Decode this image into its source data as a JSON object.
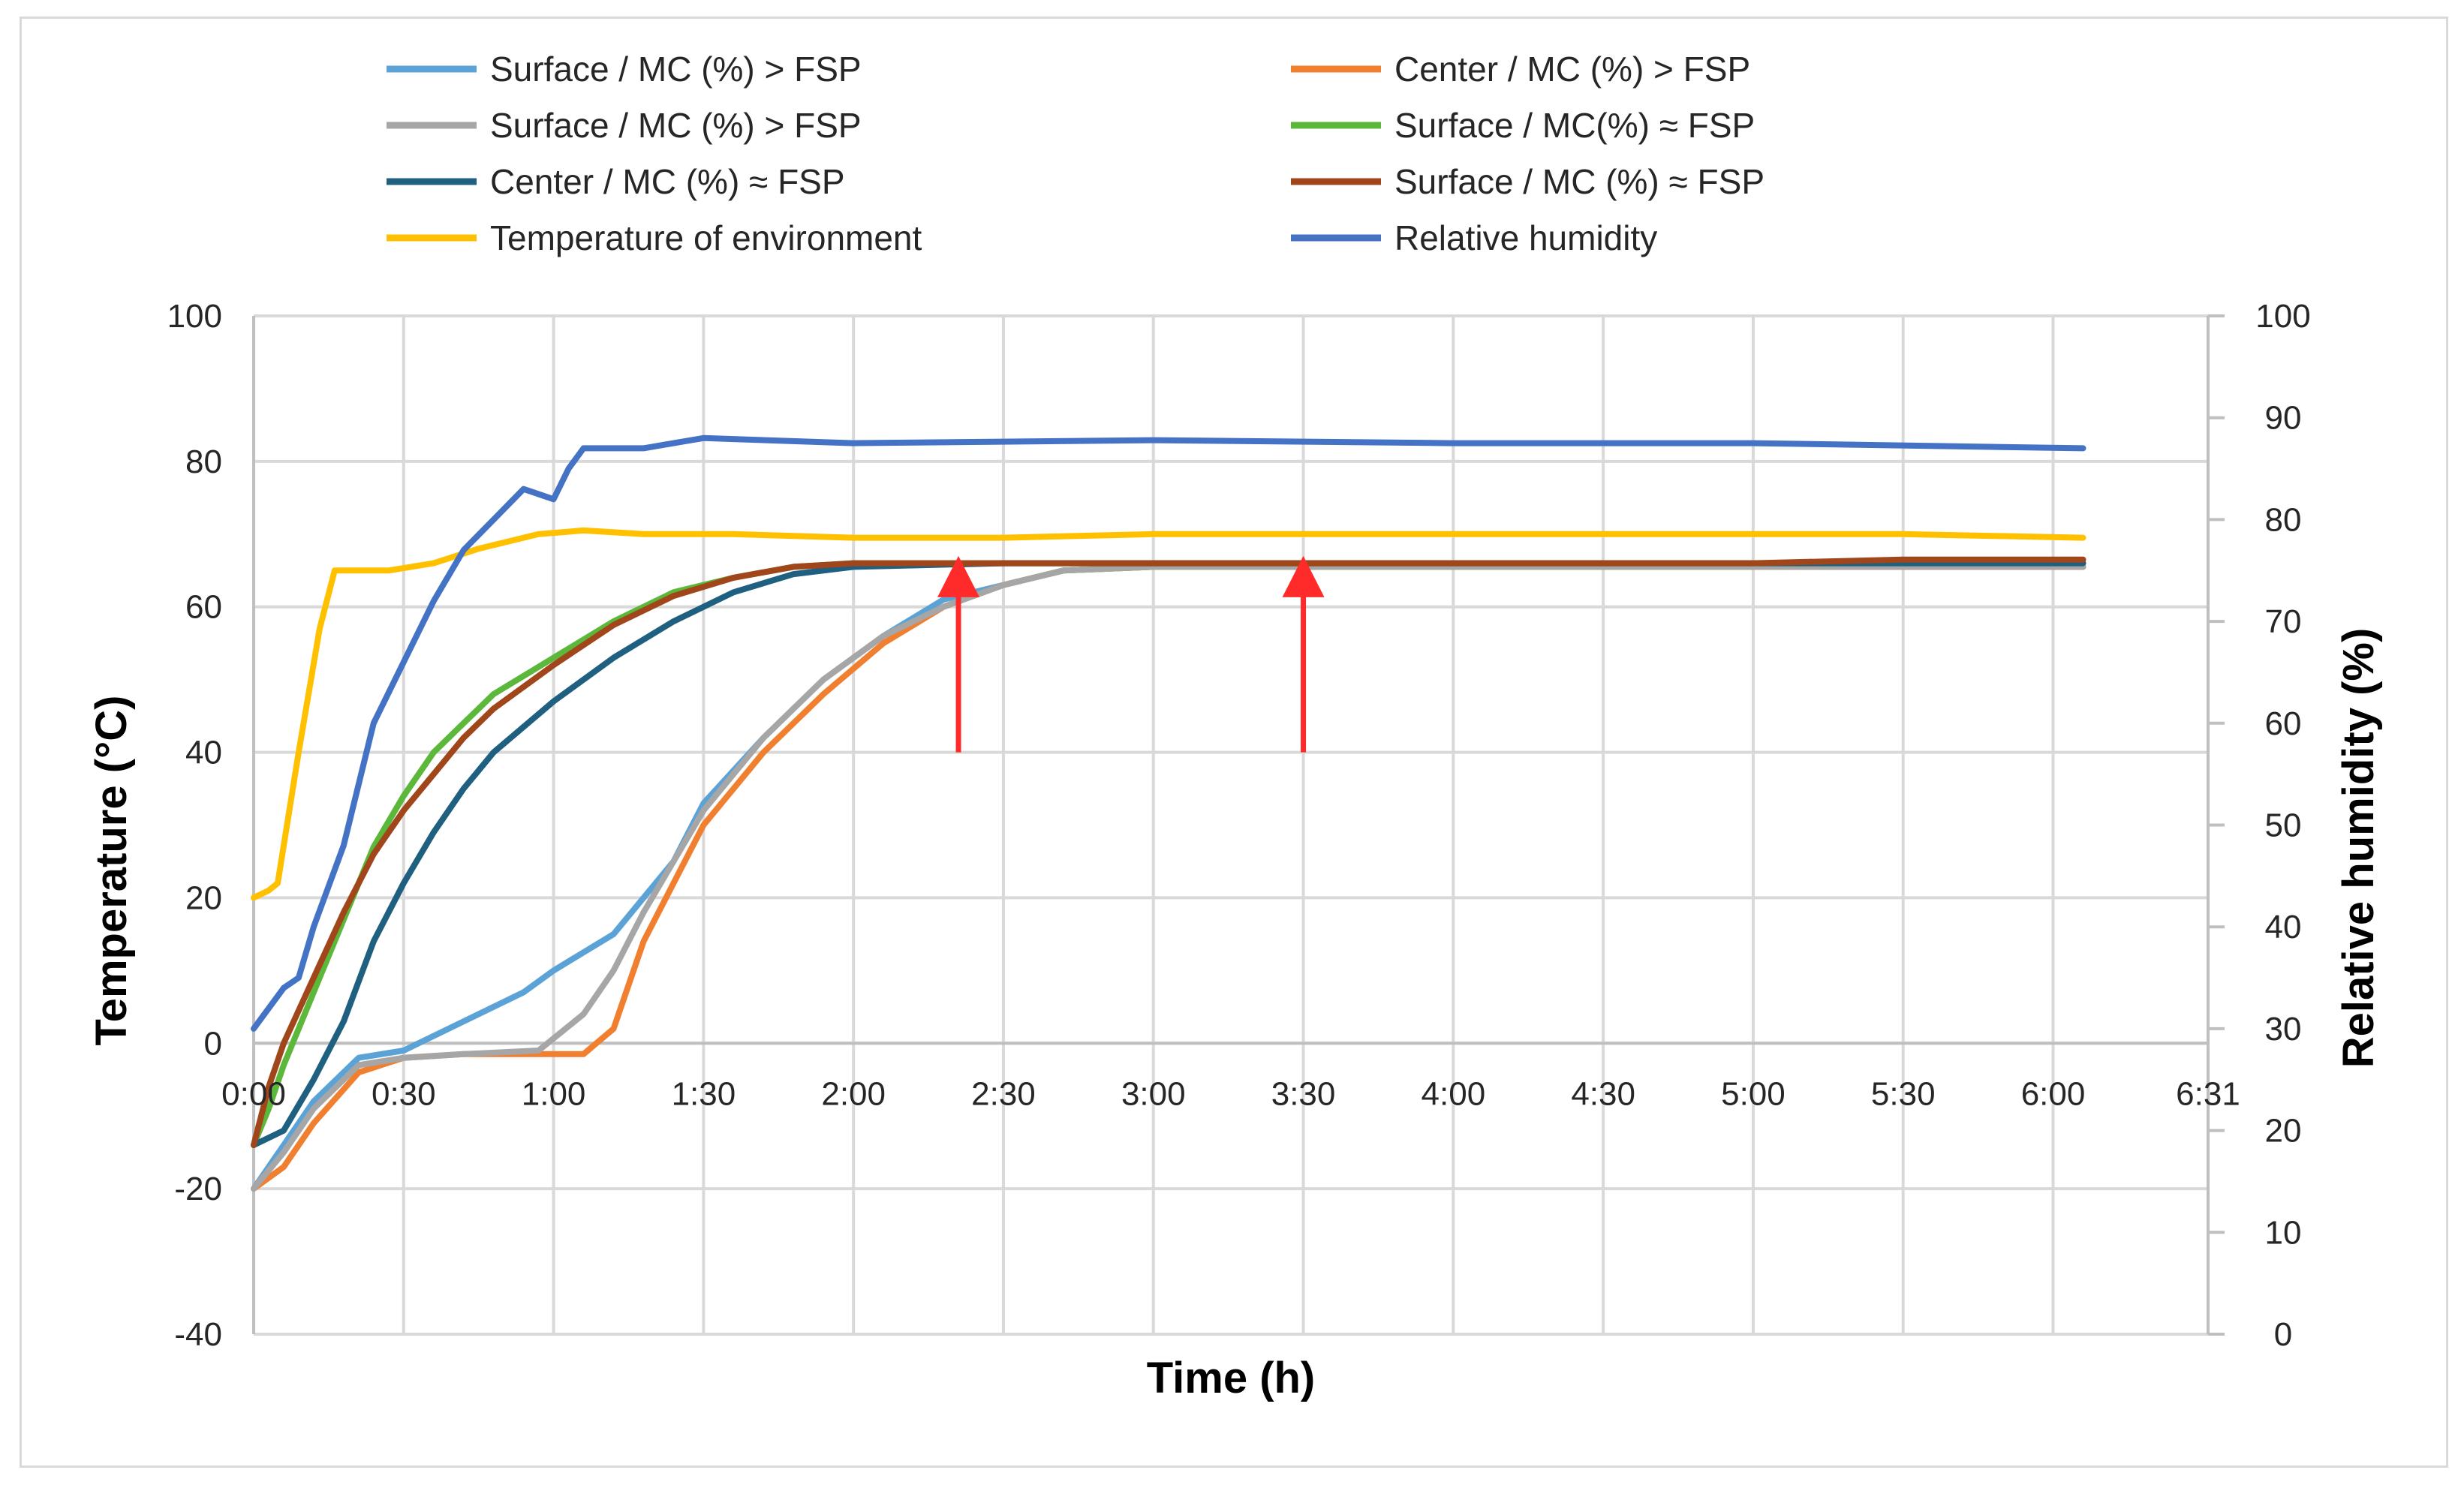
{
  "chart_data": {
    "type": "line",
    "title": "",
    "xlabel": "Time  (h)",
    "ylabel": "Temperature (°C)",
    "y2label": "Relative humidity  (%)",
    "x_unit": "hours",
    "xlim": [
      0,
      6.5167
    ],
    "ylim": [
      -40,
      100
    ],
    "y2lim": [
      0,
      100
    ],
    "grid": true,
    "legend_position": "top",
    "x_ticks": [
      {
        "value": 0,
        "label": "0:00"
      },
      {
        "value": 0.5,
        "label": "0:30"
      },
      {
        "value": 1,
        "label": "1:00"
      },
      {
        "value": 1.5,
        "label": "1:30"
      },
      {
        "value": 2,
        "label": "2:00"
      },
      {
        "value": 2.5,
        "label": "2:30"
      },
      {
        "value": 3,
        "label": "3:00"
      },
      {
        "value": 3.5,
        "label": "3:30"
      },
      {
        "value": 4,
        "label": "4:00"
      },
      {
        "value": 4.5,
        "label": "4:30"
      },
      {
        "value": 5,
        "label": "5:00"
      },
      {
        "value": 5.5,
        "label": "5:30"
      },
      {
        "value": 6,
        "label": "6:00"
      },
      {
        "value": 6.5167,
        "label": "6:31"
      }
    ],
    "y_ticks": [
      100,
      80,
      60,
      40,
      20,
      0,
      -20,
      -40
    ],
    "y2_ticks": [
      100,
      90,
      80,
      70,
      60,
      50,
      40,
      30,
      20,
      10,
      0
    ],
    "annotations": [
      {
        "type": "arrow",
        "x": 2.35,
        "y_from": 40,
        "y_to": 67,
        "color": "#ff2a2a"
      },
      {
        "type": "arrow",
        "x": 3.5,
        "y_from": 40,
        "y_to": 67,
        "color": "#ff2a2a"
      }
    ],
    "series": [
      {
        "name": "Surface / MC (%) > FSP",
        "color": "#5ba3d6",
        "axis": "left",
        "points": [
          [
            0,
            -20
          ],
          [
            0.1,
            -14
          ],
          [
            0.2,
            -8
          ],
          [
            0.35,
            -2
          ],
          [
            0.5,
            -1
          ],
          [
            0.7,
            3
          ],
          [
            0.9,
            7
          ],
          [
            1,
            10
          ],
          [
            1.2,
            15
          ],
          [
            1.3,
            20
          ],
          [
            1.4,
            25
          ],
          [
            1.5,
            33
          ],
          [
            1.7,
            42
          ],
          [
            1.9,
            50
          ],
          [
            2.1,
            56
          ],
          [
            2.3,
            61
          ],
          [
            2.5,
            63
          ],
          [
            2.7,
            65
          ],
          [
            3,
            65.5
          ],
          [
            3.5,
            65.5
          ],
          [
            4,
            65.5
          ],
          [
            4.5,
            65.5
          ],
          [
            5,
            65.5
          ],
          [
            5.5,
            65.5
          ],
          [
            6.1,
            65.5
          ]
        ]
      },
      {
        "name": "Center / MC (%) > FSP",
        "color": "#f08030",
        "axis": "left",
        "points": [
          [
            0,
            -20
          ],
          [
            0.1,
            -17
          ],
          [
            0.2,
            -11
          ],
          [
            0.35,
            -4
          ],
          [
            0.5,
            -2
          ],
          [
            0.7,
            -1.5
          ],
          [
            0.9,
            -1.5
          ],
          [
            1.1,
            -1.5
          ],
          [
            1.2,
            2
          ],
          [
            1.3,
            14
          ],
          [
            1.4,
            22
          ],
          [
            1.5,
            30
          ],
          [
            1.7,
            40
          ],
          [
            1.9,
            48
          ],
          [
            2.1,
            55
          ],
          [
            2.3,
            60
          ],
          [
            2.5,
            63
          ],
          [
            2.7,
            65
          ],
          [
            3,
            65.5
          ],
          [
            3.5,
            65.5
          ],
          [
            4,
            65.5
          ],
          [
            4.5,
            65.5
          ],
          [
            5,
            65.5
          ],
          [
            5.5,
            65.5
          ],
          [
            6.1,
            65.5
          ]
        ]
      },
      {
        "name": "Surface / MC (%) > FSP",
        "color": "#a6a6a6",
        "axis": "left",
        "points": [
          [
            0,
            -20
          ],
          [
            0.1,
            -15
          ],
          [
            0.2,
            -9
          ],
          [
            0.35,
            -3
          ],
          [
            0.5,
            -2
          ],
          [
            0.7,
            -1.5
          ],
          [
            0.95,
            -1
          ],
          [
            1.1,
            4
          ],
          [
            1.2,
            10
          ],
          [
            1.3,
            18
          ],
          [
            1.4,
            25
          ],
          [
            1.5,
            32
          ],
          [
            1.7,
            42
          ],
          [
            1.9,
            50
          ],
          [
            2.1,
            56
          ],
          [
            2.3,
            60
          ],
          [
            2.5,
            63
          ],
          [
            2.7,
            65
          ],
          [
            3,
            65.5
          ],
          [
            3.5,
            65.5
          ],
          [
            4,
            65.5
          ],
          [
            4.5,
            65.5
          ],
          [
            5,
            65.5
          ],
          [
            5.5,
            65.5
          ],
          [
            6.1,
            65.5
          ]
        ]
      },
      {
        "name": "Surface /  MC(%) ≈ FSP",
        "color": "#5cb83a",
        "axis": "left",
        "points": [
          [
            0,
            -14
          ],
          [
            0.05,
            -9
          ],
          [
            0.1,
            -3
          ],
          [
            0.2,
            7
          ],
          [
            0.3,
            17
          ],
          [
            0.4,
            27
          ],
          [
            0.5,
            34
          ],
          [
            0.6,
            40
          ],
          [
            0.7,
            44
          ],
          [
            0.8,
            48
          ],
          [
            1,
            53
          ],
          [
            1.2,
            58
          ],
          [
            1.4,
            62
          ],
          [
            1.6,
            64
          ],
          [
            1.8,
            65.5
          ],
          [
            2,
            66
          ],
          [
            2.5,
            66
          ],
          [
            3,
            66
          ],
          [
            4,
            66
          ],
          [
            5,
            66
          ],
          [
            6.1,
            66
          ]
        ]
      },
      {
        "name": "Center / MC (%) ≈ FSP",
        "color": "#1f5f80",
        "axis": "left",
        "points": [
          [
            0,
            -14
          ],
          [
            0.1,
            -12
          ],
          [
            0.2,
            -5
          ],
          [
            0.3,
            3
          ],
          [
            0.4,
            14
          ],
          [
            0.5,
            22
          ],
          [
            0.6,
            29
          ],
          [
            0.7,
            35
          ],
          [
            0.8,
            40
          ],
          [
            1,
            47
          ],
          [
            1.2,
            53
          ],
          [
            1.4,
            58
          ],
          [
            1.6,
            62
          ],
          [
            1.8,
            64.5
          ],
          [
            2,
            65.5
          ],
          [
            2.5,
            66
          ],
          [
            3,
            66
          ],
          [
            4,
            66
          ],
          [
            5,
            66
          ],
          [
            6.1,
            66
          ]
        ]
      },
      {
        "name": "Surface / MC (%) ≈ FSP",
        "color": "#a0461a",
        "axis": "left",
        "points": [
          [
            0,
            -14
          ],
          [
            0.05,
            -6
          ],
          [
            0.1,
            0
          ],
          [
            0.2,
            9
          ],
          [
            0.3,
            18
          ],
          [
            0.4,
            26
          ],
          [
            0.5,
            32
          ],
          [
            0.6,
            37
          ],
          [
            0.7,
            42
          ],
          [
            0.8,
            46
          ],
          [
            1,
            52
          ],
          [
            1.2,
            57.5
          ],
          [
            1.4,
            61.5
          ],
          [
            1.6,
            64
          ],
          [
            1.8,
            65.5
          ],
          [
            2,
            66
          ],
          [
            2.5,
            66
          ],
          [
            3,
            66
          ],
          [
            4,
            66
          ],
          [
            5,
            66
          ],
          [
            5.5,
            66.5
          ],
          [
            6.1,
            66.5
          ]
        ]
      },
      {
        "name": "Temperature of environment",
        "color": "#ffc000",
        "axis": "left",
        "points": [
          [
            0,
            20
          ],
          [
            0.05,
            21
          ],
          [
            0.08,
            22
          ],
          [
            0.15,
            40
          ],
          [
            0.22,
            57
          ],
          [
            0.27,
            65
          ],
          [
            0.35,
            65
          ],
          [
            0.45,
            65
          ],
          [
            0.6,
            66
          ],
          [
            0.75,
            68
          ],
          [
            0.95,
            70
          ],
          [
            1.1,
            70.5
          ],
          [
            1.3,
            70
          ],
          [
            1.6,
            70
          ],
          [
            2,
            69.5
          ],
          [
            2.5,
            69.5
          ],
          [
            3,
            70
          ],
          [
            3.5,
            70
          ],
          [
            4,
            70
          ],
          [
            5,
            70
          ],
          [
            5.5,
            70
          ],
          [
            6.1,
            69.5
          ]
        ]
      },
      {
        "name": "Relative humidity",
        "color": "#4472c4",
        "axis": "right",
        "points": [
          [
            0,
            30
          ],
          [
            0.05,
            32
          ],
          [
            0.1,
            34
          ],
          [
            0.15,
            35
          ],
          [
            0.2,
            40
          ],
          [
            0.3,
            48
          ],
          [
            0.4,
            60
          ],
          [
            0.5,
            66
          ],
          [
            0.6,
            72
          ],
          [
            0.7,
            77
          ],
          [
            0.8,
            80
          ],
          [
            0.9,
            83
          ],
          [
            1,
            82
          ],
          [
            1.05,
            85
          ],
          [
            1.1,
            87
          ],
          [
            1.3,
            87
          ],
          [
            1.4,
            87.5
          ],
          [
            1.5,
            88
          ],
          [
            2,
            87.5
          ],
          [
            3,
            87.8
          ],
          [
            4,
            87.5
          ],
          [
            5,
            87.5
          ],
          [
            6.1,
            87
          ]
        ]
      }
    ]
  }
}
